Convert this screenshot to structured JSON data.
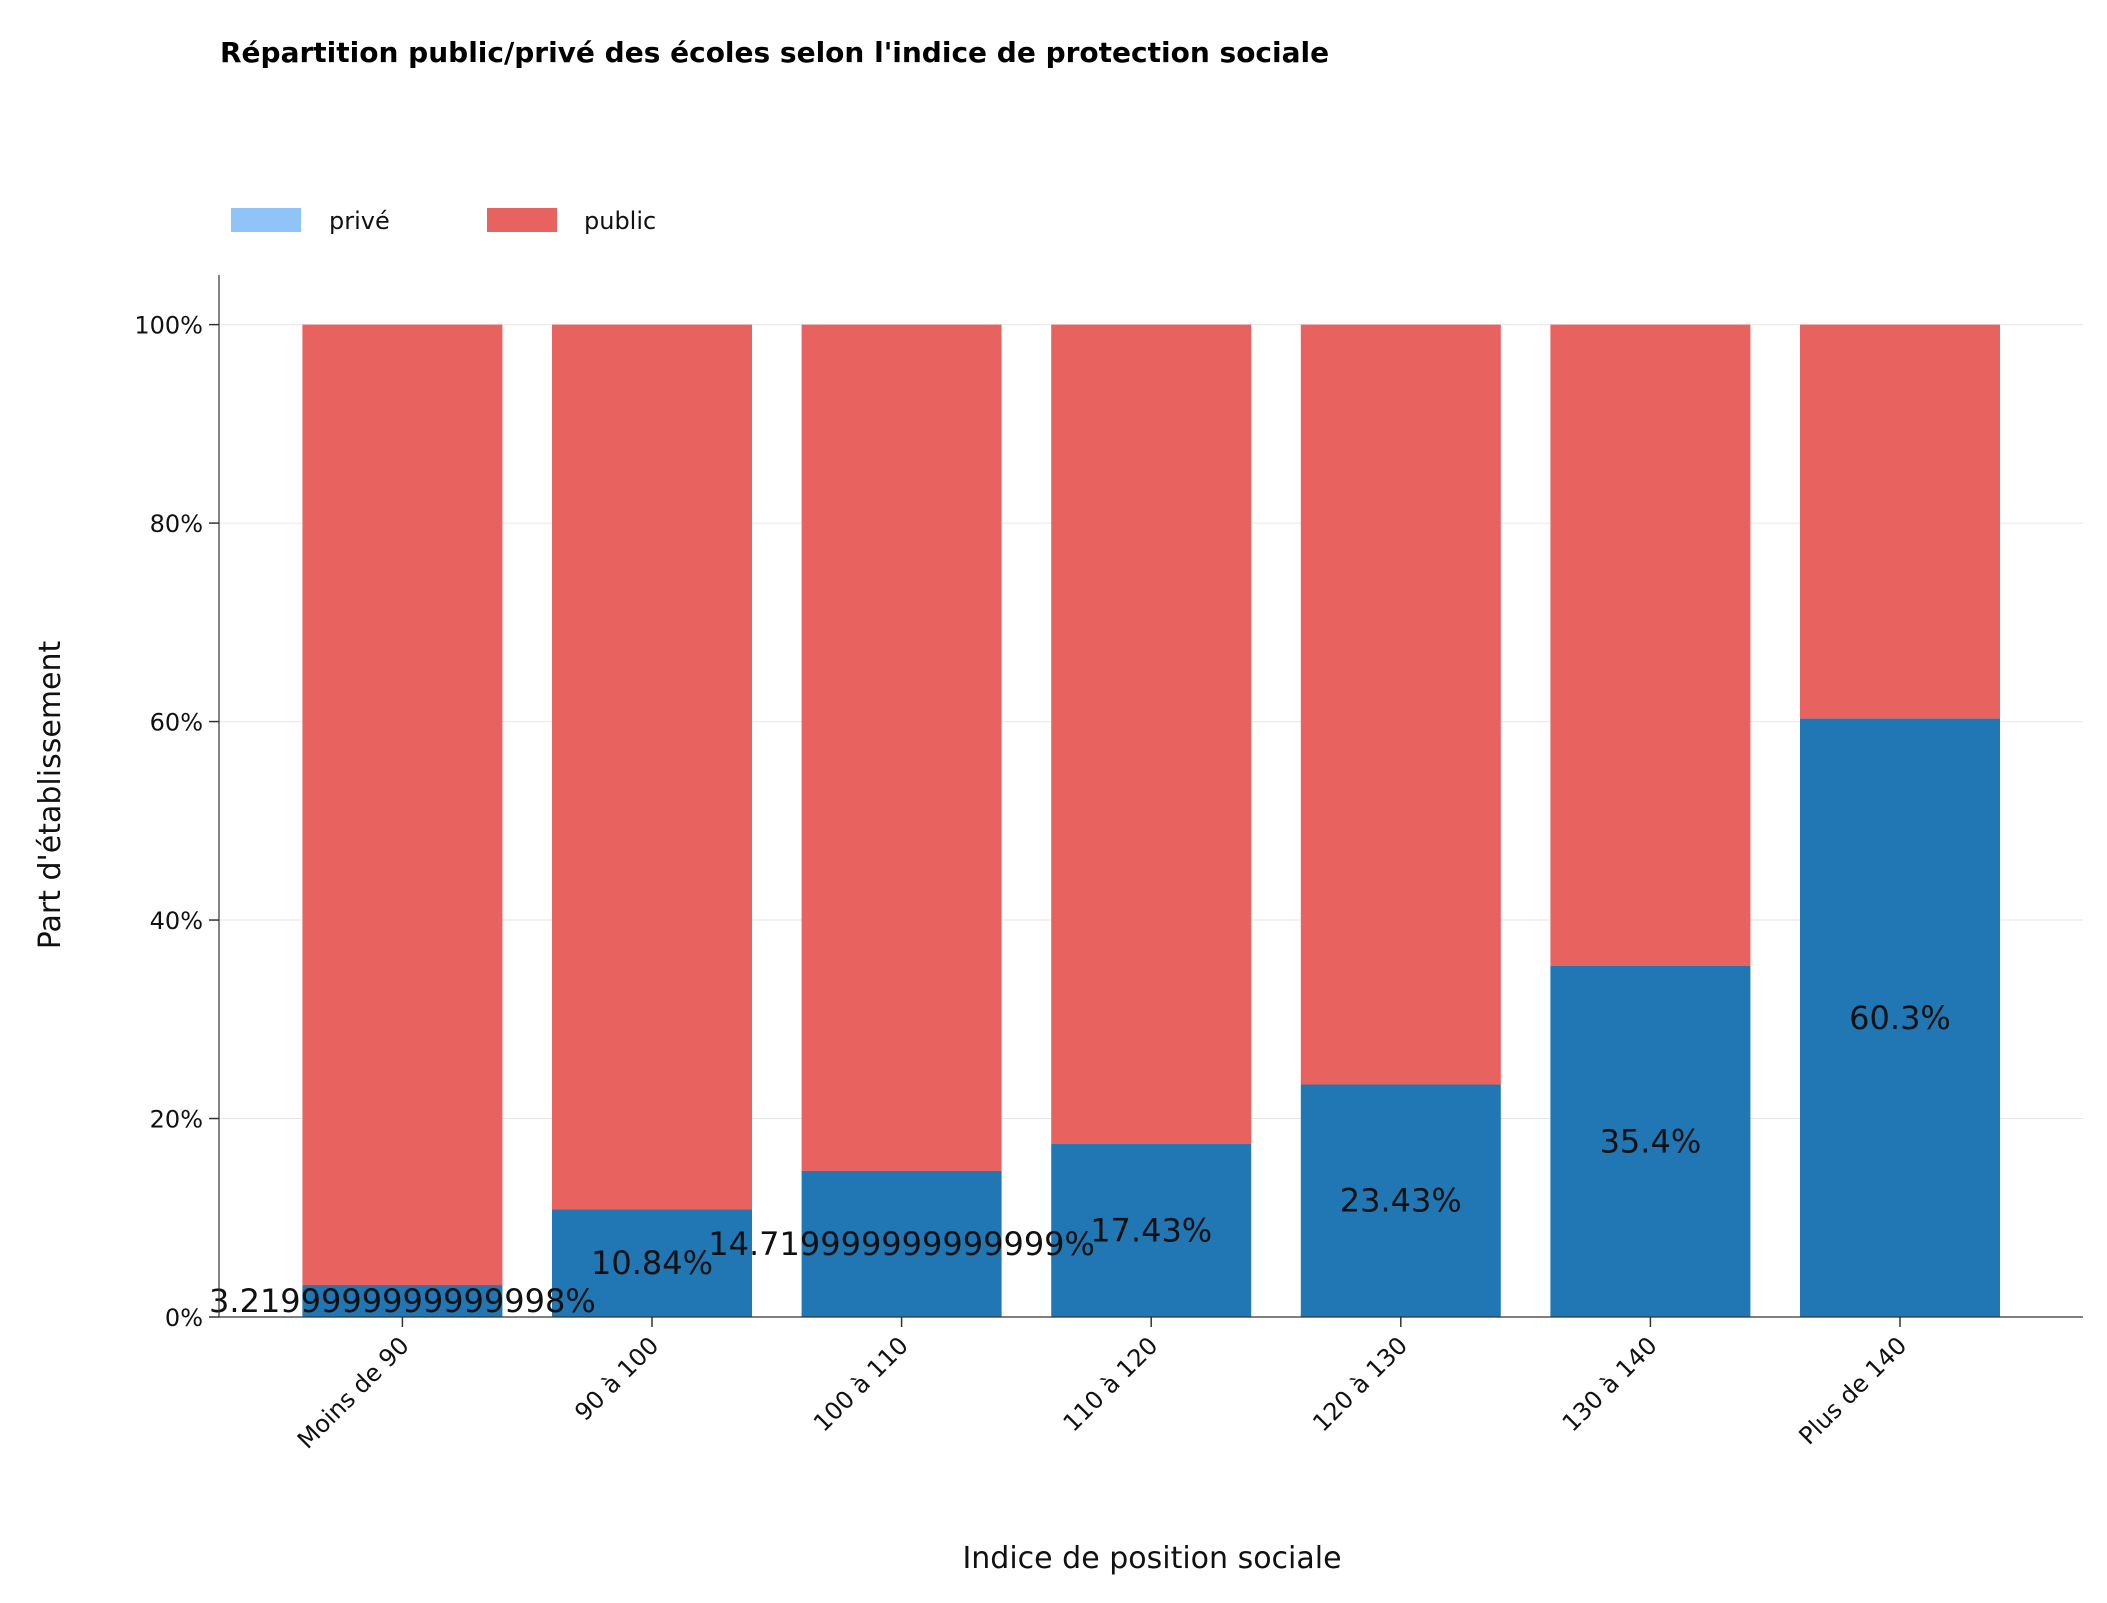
{
  "chart_data": {
    "type": "bar",
    "stacked": true,
    "title": "Répartition public/privé des écoles selon l'indice de protection sociale",
    "xlabel": "Indice de position sociale",
    "ylabel": "Part d'établissement",
    "ylim": [
      0,
      105
    ],
    "yticks": [
      0,
      20,
      40,
      60,
      80,
      100
    ],
    "ytick_labels": [
      "0%",
      "20%",
      "40%",
      "60%",
      "80%",
      "100%"
    ],
    "grid": "horizontal",
    "legend_position": "top-left",
    "categories": [
      "Moins de 90",
      "90 à 100",
      "100 à 110",
      "110 à 120",
      "120 à 130",
      "130 à 140",
      "Plus de 140"
    ],
    "series": [
      {
        "name": "privé",
        "legend_color": "#90c4f9",
        "bar_color": "#2077b4",
        "values": [
          3.22,
          10.84,
          14.72,
          17.43,
          23.43,
          35.4,
          60.3
        ],
        "labels": [
          "3.2199999999999998%",
          "10.84%",
          "14.719999999999999%",
          "17.43%",
          "23.43%",
          "35.4%",
          "60.3%"
        ]
      },
      {
        "name": "public",
        "legend_color": "#e86360",
        "bar_color": "#e86360",
        "values": [
          96.78,
          89.16,
          85.28,
          82.57,
          76.57,
          64.6,
          39.7
        ]
      }
    ]
  }
}
